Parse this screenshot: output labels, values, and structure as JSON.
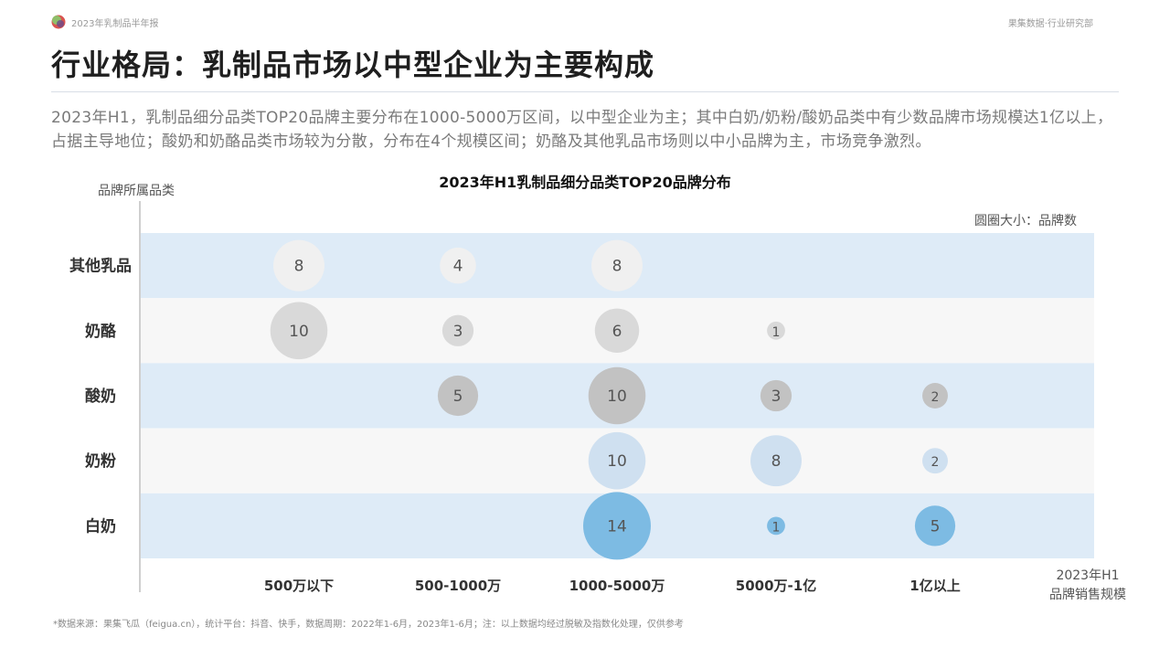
{
  "header": {
    "report_name": "2023年乳制品半年报",
    "org_name": "果集数据·行业研究部"
  },
  "page_title": "行业格局：乳制品市场以中型企业为主要构成",
  "summary": "2023年H1，乳制品细分品类TOP20品牌主要分布在1000-5000万区间，以中型企业为主；其中白奶/奶粉/酸奶品类中有少数品牌市场规模达1亿以上，占据主导地位；酸奶和奶酪品类市场较为分散，分布在4个规模区间；奶酪及其他乳品市场则以中小品牌为主，市场竞争激烈。",
  "chart_data": {
    "type": "scatter",
    "title": "2023年H1乳制品细分品类TOP20品牌分布",
    "ylabel": "品牌所属品类",
    "xlabel_line1": "2023年H1",
    "xlabel_line2": "品牌销售规模",
    "size_note": "圆圈大小：品牌数",
    "x_categories": [
      "500万以下",
      "500-1000万",
      "1000-5000万",
      "5000万-1亿",
      "1亿以上"
    ],
    "y_categories": [
      "其他乳品",
      "奶酪",
      "酸奶",
      "奶粉",
      "白奶"
    ],
    "row_band_colors": [
      "#deebf7",
      "#f7f7f7",
      "#deebf7",
      "#f7f7f7",
      "#deebf7"
    ],
    "series": [
      {
        "values": [
          8,
          4,
          8,
          null,
          null
        ],
        "color": "#f0f0f0"
      },
      {
        "values": [
          10,
          3,
          6,
          1,
          null
        ],
        "color": "#d9d9d9"
      },
      {
        "values": [
          null,
          5,
          10,
          3,
          2
        ],
        "color": "#c2c2c2"
      },
      {
        "values": [
          null,
          null,
          10,
          8,
          2
        ],
        "color": "#cfe0f0"
      },
      {
        "values": [
          null,
          null,
          14,
          1,
          5
        ],
        "color": "#7dbbe3"
      }
    ]
  },
  "footnote": "*数据来源：果集飞瓜（feigua.cn），统计平台：抖音、快手，数据周期：2022年1-6月，2023年1-6月；注：以上数据均经过脱敏及指数化处理，仅供参考"
}
